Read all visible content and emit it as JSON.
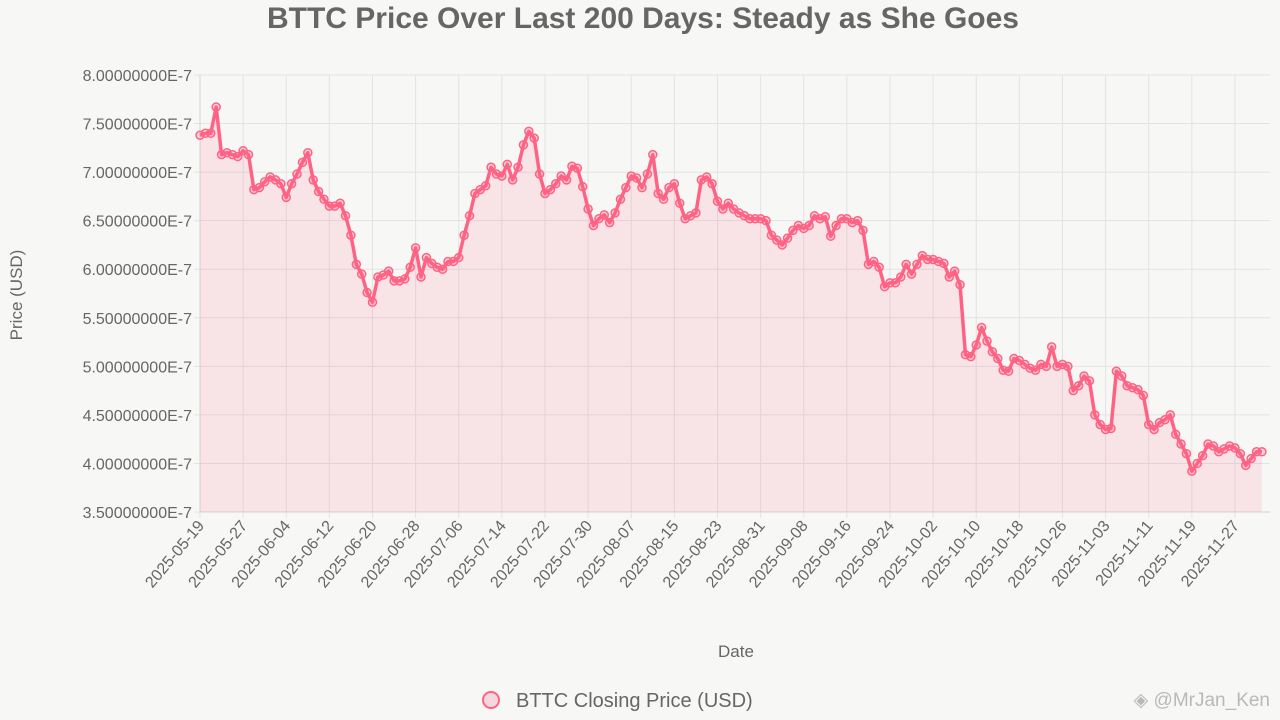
{
  "chart_data": {
    "type": "line",
    "title": "BTTC Price Over Last 200 Days: Steady as She Goes",
    "xlabel": "Date",
    "ylabel": "Price (USD)",
    "ylim": [
      3.5e-07,
      8e-07
    ],
    "yticks": [
      "8.00000000E-7",
      "7.50000000E-7",
      "7.00000000E-7",
      "6.50000000E-7",
      "6.00000000E-7",
      "5.50000000E-7",
      "5.00000000E-7",
      "4.50000000E-7",
      "4.00000000E-7",
      "3.50000000E-7"
    ],
    "xticks": [
      "2025-05-19",
      "2025-05-27",
      "2025-06-04",
      "2025-06-12",
      "2025-06-20",
      "2025-06-28",
      "2025-07-06",
      "2025-07-14",
      "2025-07-22",
      "2025-07-30",
      "2025-08-07",
      "2025-08-15",
      "2025-08-23",
      "2025-08-31",
      "2025-09-08",
      "2025-09-16",
      "2025-09-24",
      "2025-10-02",
      "2025-10-10",
      "2025-10-18",
      "2025-10-26",
      "2025-11-03",
      "2025-11-11",
      "2025-11-19",
      "2025-11-27"
    ],
    "grid": true,
    "legend_position": "bottom",
    "series": [
      {
        "name": "BTTC Closing Price (USD)",
        "color": "#ff6384",
        "values": [
          7.38e-07,
          7.4e-07,
          7.4e-07,
          7.67e-07,
          7.18e-07,
          7.2e-07,
          7.18e-07,
          7.16e-07,
          7.22e-07,
          7.18e-07,
          6.82e-07,
          6.84e-07,
          6.9e-07,
          6.95e-07,
          6.92e-07,
          6.88e-07,
          6.74e-07,
          6.88e-07,
          6.98e-07,
          7.1e-07,
          7.2e-07,
          6.92e-07,
          6.8e-07,
          6.72e-07,
          6.65e-07,
          6.65e-07,
          6.68e-07,
          6.55e-07,
          6.35e-07,
          6.05e-07,
          5.95e-07,
          5.76e-07,
          5.66e-07,
          5.92e-07,
          5.94e-07,
          5.98e-07,
          5.88e-07,
          5.88e-07,
          5.9e-07,
          6.02e-07,
          6.22e-07,
          5.92e-07,
          6.12e-07,
          6.06e-07,
          6.02e-07,
          6e-07,
          6.08e-07,
          6.08e-07,
          6.12e-07,
          6.35e-07,
          6.55e-07,
          6.78e-07,
          6.82e-07,
          6.86e-07,
          7.05e-07,
          6.98e-07,
          6.96e-07,
          7.08e-07,
          6.92e-07,
          7.05e-07,
          7.28e-07,
          7.42e-07,
          7.35e-07,
          6.98e-07,
          6.78e-07,
          6.82e-07,
          6.88e-07,
          6.96e-07,
          6.92e-07,
          7.06e-07,
          7.04e-07,
          6.85e-07,
          6.62e-07,
          6.45e-07,
          6.52e-07,
          6.56e-07,
          6.48e-07,
          6.58e-07,
          6.72e-07,
          6.84e-07,
          6.96e-07,
          6.94e-07,
          6.84e-07,
          6.98e-07,
          7.18e-07,
          6.78e-07,
          6.72e-07,
          6.84e-07,
          6.88e-07,
          6.68e-07,
          6.52e-07,
          6.55e-07,
          6.58e-07,
          6.92e-07,
          6.95e-07,
          6.88e-07,
          6.7e-07,
          6.62e-07,
          6.68e-07,
          6.62e-07,
          6.58e-07,
          6.55e-07,
          6.52e-07,
          6.52e-07,
          6.52e-07,
          6.5e-07,
          6.35e-07,
          6.3e-07,
          6.25e-07,
          6.32e-07,
          6.4e-07,
          6.45e-07,
          6.42e-07,
          6.45e-07,
          6.55e-07,
          6.52e-07,
          6.54e-07,
          6.34e-07,
          6.45e-07,
          6.52e-07,
          6.52e-07,
          6.48e-07,
          6.5e-07,
          6.4e-07,
          6.05e-07,
          6.08e-07,
          6.02e-07,
          5.82e-07,
          5.86e-07,
          5.86e-07,
          5.92e-07,
          6.05e-07,
          5.95e-07,
          6.05e-07,
          6.14e-07,
          6.1e-07,
          6.1e-07,
          6.08e-07,
          6.06e-07,
          5.92e-07,
          5.98e-07,
          5.84e-07,
          5.12e-07,
          5.1e-07,
          5.22e-07,
          5.4e-07,
          5.26e-07,
          5.15e-07,
          5.08e-07,
          4.96e-07,
          4.95e-07,
          5.08e-07,
          5.06e-07,
          5.02e-07,
          4.98e-07,
          4.96e-07,
          5.02e-07,
          5e-07,
          5.2e-07,
          5e-07,
          5.02e-07,
          5e-07,
          4.75e-07,
          4.8e-07,
          4.9e-07,
          4.85e-07,
          4.5e-07,
          4.4e-07,
          4.35e-07,
          4.36e-07,
          4.95e-07,
          4.9e-07,
          4.8e-07,
          4.78e-07,
          4.76e-07,
          4.7e-07,
          4.4e-07,
          4.35e-07,
          4.42e-07,
          4.45e-07,
          4.5e-07,
          4.3e-07,
          4.2e-07,
          4.1e-07,
          3.92e-07,
          4e-07,
          4.08e-07,
          4.2e-07,
          4.18e-07,
          4.12e-07,
          4.15e-07,
          4.18e-07,
          4.16e-07,
          4.1e-07,
          3.98e-07,
          4.05e-07,
          4.12e-07,
          4.12e-07
        ]
      }
    ]
  },
  "watermark": {
    "text": "@MrJan_Ken",
    "icon": "binance-diamond-icon"
  }
}
